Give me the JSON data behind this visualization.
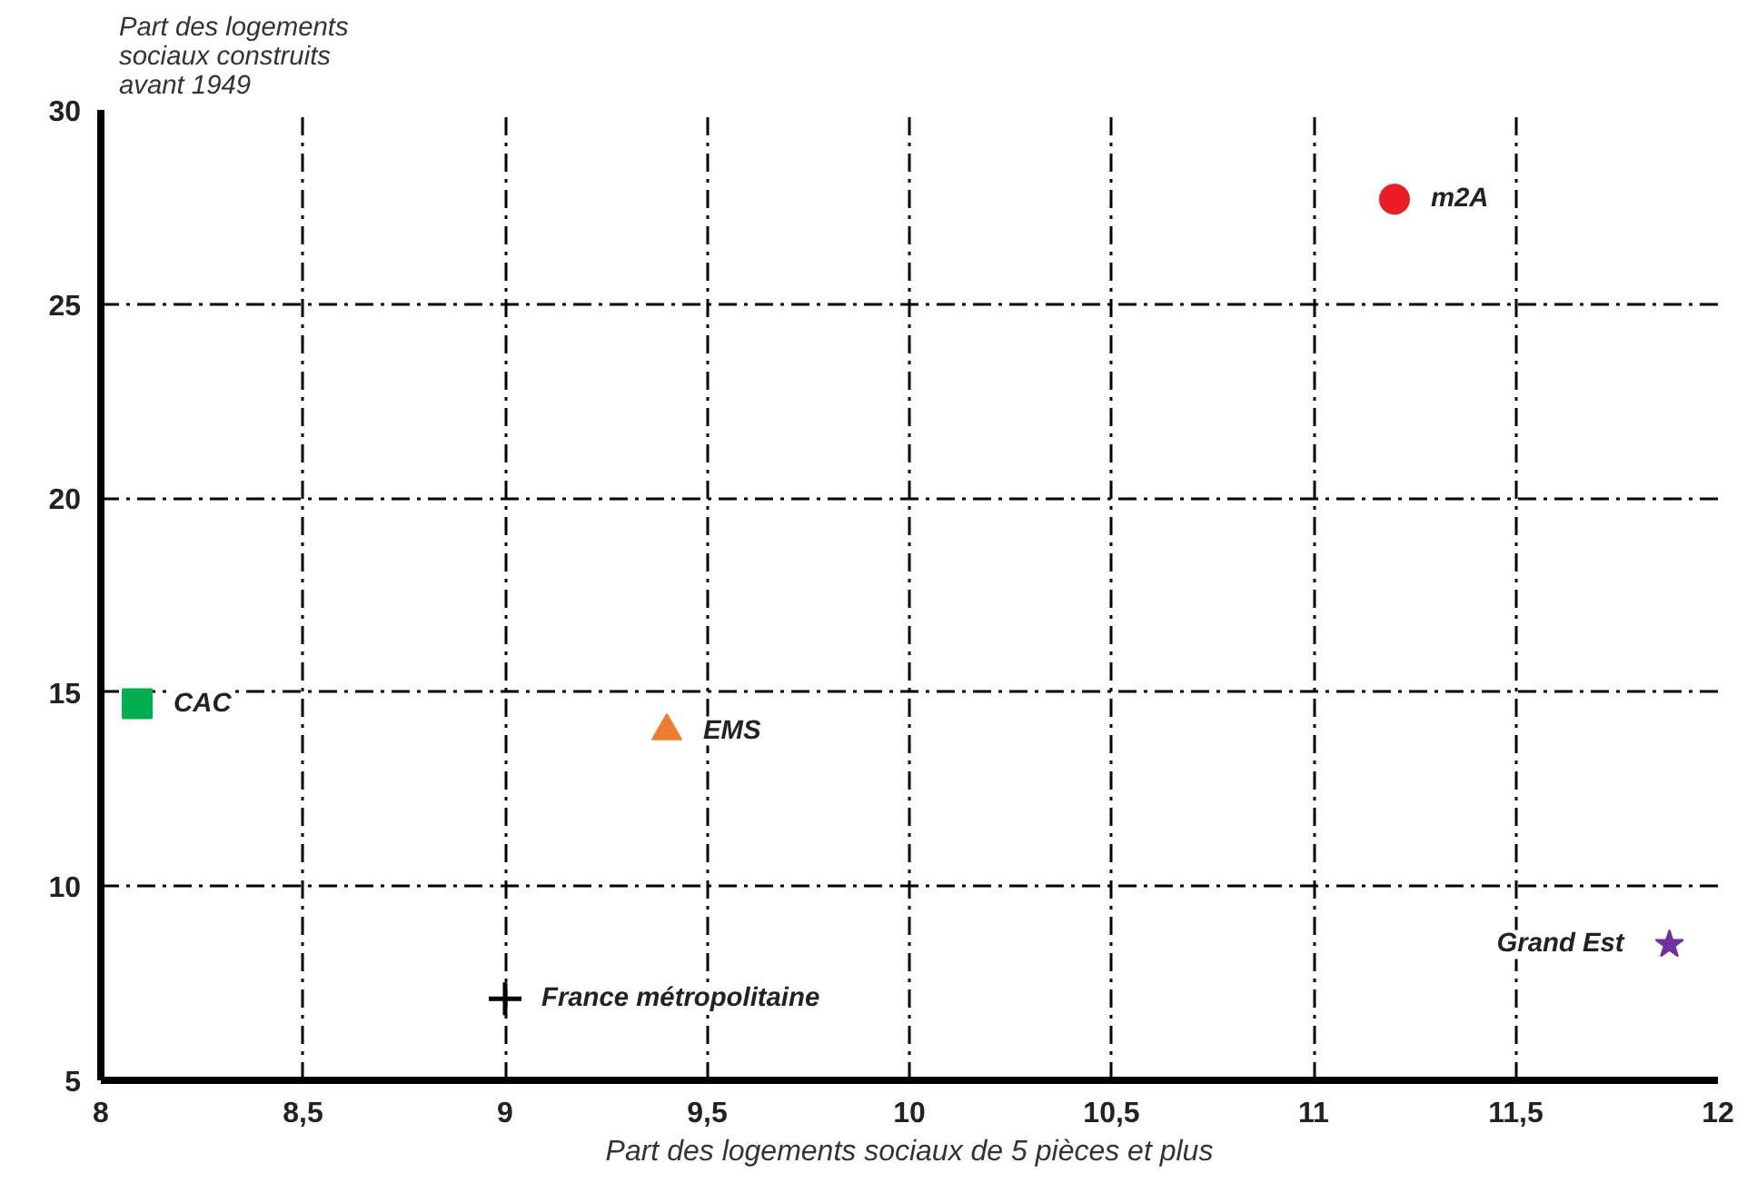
{
  "chart_data": {
    "type": "scatter",
    "xlabel": "Part des logements sociaux de 5 pièces et plus",
    "ylabel": "Part des logements\nsociaux construits\navant 1949",
    "xlim": [
      8,
      12
    ],
    "ylim": [
      5,
      30
    ],
    "xticks": [
      8,
      {
        "value": 8.5,
        "label": "8,5"
      },
      9,
      {
        "value": 9.5,
        "label": "9,5"
      },
      10,
      {
        "value": 10.5,
        "label": "10,5"
      },
      11,
      {
        "value": 11.5,
        "label": "11,5"
      },
      12
    ],
    "yticks": [
      5,
      10,
      15,
      20,
      25,
      30
    ],
    "grid": true,
    "line_style": "dashed",
    "series": [
      {
        "name": "CAC",
        "color": "#00b050",
        "marker": "square",
        "x": [
          8.09
        ],
        "values": [
          14.7
        ]
      },
      {
        "name": "EMS",
        "color": "#ed7d31",
        "marker": "triangle",
        "x": [
          9.4
        ],
        "values": [
          14.0
        ]
      },
      {
        "name": "France métropolitaine",
        "color": "#000000",
        "marker": "cross",
        "x": [
          9.0
        ],
        "values": [
          7.1
        ]
      },
      {
        "name": "m2A",
        "color": "#ed1c24",
        "marker": "circle",
        "x": [
          11.2
        ],
        "values": [
          27.7
        ]
      },
      {
        "name": "Grand Est",
        "color": "#7030a0",
        "marker": "star",
        "x": [
          11.88
        ],
        "values": [
          8.5
        ]
      }
    ]
  }
}
